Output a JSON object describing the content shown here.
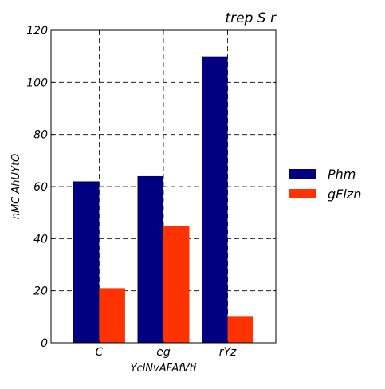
{
  "chart_data": {
    "type": "bar",
    "title": "trep S r",
    "xlabel": "YclNvAFAfVti",
    "ylabel": "nMC AhUYtO",
    "categories": [
      "C",
      "eg",
      "rYz"
    ],
    "series": [
      {
        "name": "Phm",
        "color": "#000080",
        "values": [
          62,
          64,
          110
        ]
      },
      {
        "name": "gFizn",
        "color": "#ff3300",
        "values": [
          21,
          45,
          10
        ]
      }
    ],
    "ylim": [
      0,
      120
    ],
    "yticks": [
      0,
      20,
      40,
      60,
      80,
      100,
      120
    ],
    "grid": true,
    "legend_position": "right"
  }
}
